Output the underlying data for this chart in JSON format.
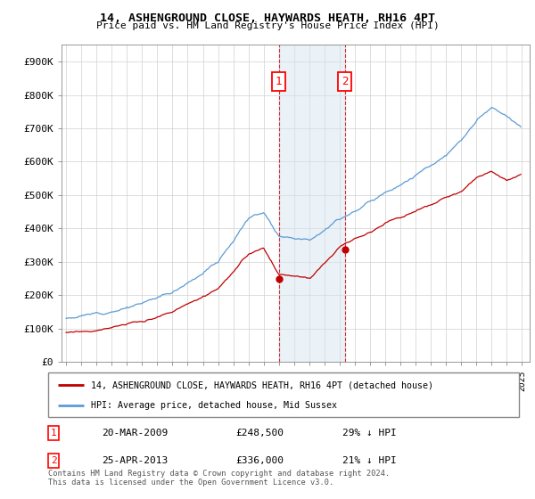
{
  "title1": "14, ASHENGROUND CLOSE, HAYWARDS HEATH, RH16 4PT",
  "title2": "Price paid vs. HM Land Registry's House Price Index (HPI)",
  "ylim": [
    0,
    950000
  ],
  "yticks": [
    0,
    100000,
    200000,
    300000,
    400000,
    500000,
    600000,
    700000,
    800000,
    900000
  ],
  "ytick_labels": [
    "£0",
    "£100K",
    "£200K",
    "£300K",
    "£400K",
    "£500K",
    "£600K",
    "£700K",
    "£800K",
    "£900K"
  ],
  "hpi_color": "#5b9bd5",
  "price_color": "#c00000",
  "transaction1": {
    "date": "20-MAR-2009",
    "price": 248500,
    "pct": "29%",
    "direction": "↓"
  },
  "transaction2": {
    "date": "25-APR-2013",
    "price": 336000,
    "pct": "21%",
    "direction": "↓"
  },
  "legend_line1": "14, ASHENGROUND CLOSE, HAYWARDS HEATH, RH16 4PT (detached house)",
  "legend_line2": "HPI: Average price, detached house, Mid Sussex",
  "footnote": "Contains HM Land Registry data © Crown copyright and database right 2024.\nThis data is licensed under the Open Government Licence v3.0.",
  "shaded_color": "#d6e4f0",
  "shaded_alpha": 0.5,
  "xlim_left": 1994.7,
  "xlim_right": 2025.5
}
